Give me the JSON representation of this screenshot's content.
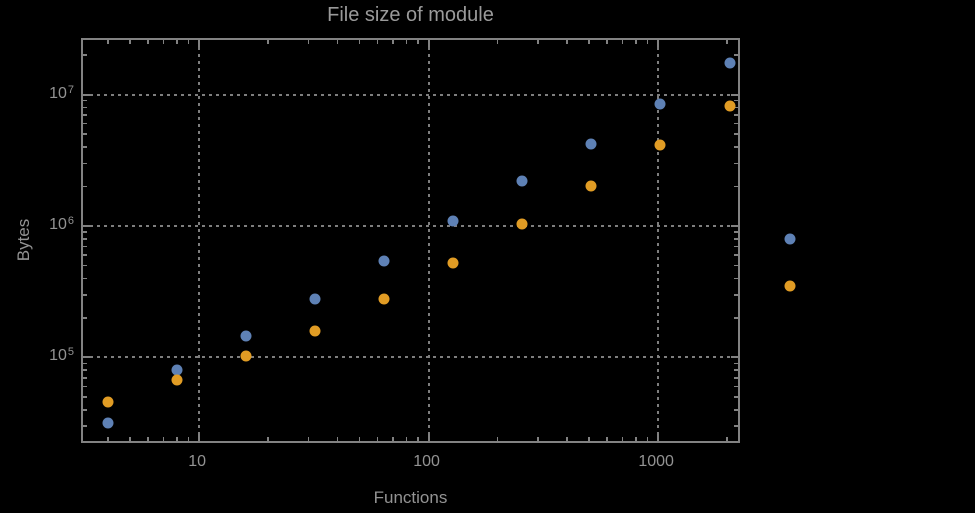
{
  "figure": {
    "background": "#000000",
    "frame_color": "#828282",
    "grid_color": "#7e7e7e",
    "text_color": "#939393"
  },
  "chart_data": {
    "type": "scatter",
    "title": "File size of module",
    "xlabel": "Functions",
    "ylabel": "Bytes",
    "x_scale": "log",
    "y_scale": "log",
    "xlim": [
      3.12,
      2320
    ],
    "ylim": [
      21600,
      26000000
    ],
    "grid": "dotted lines at decade powers, both axes",
    "legend_position": "none",
    "x_ticks": [
      {
        "label": "10",
        "value": 10
      },
      {
        "label": "100",
        "value": 100
      },
      {
        "label": "1000",
        "value": 1000
      }
    ],
    "y_ticks": [
      {
        "base": "10",
        "exp": "5",
        "value": 100000
      },
      {
        "base": "10",
        "exp": "6",
        "value": 1000000
      },
      {
        "base": "10",
        "exp": "7",
        "value": 10000000
      }
    ],
    "note": "last point of each series lies beyond the right frame edge (not clipped)",
    "series": [
      {
        "name": "series-1-blue",
        "color": "#5e81b5",
        "points": [
          [
            4,
            32000
          ],
          [
            8,
            81000
          ],
          [
            16,
            145000
          ],
          [
            32,
            280000
          ],
          [
            64,
            540000
          ],
          [
            128,
            1100000
          ],
          [
            256,
            2200000
          ],
          [
            512,
            4200000
          ],
          [
            1024,
            8500000
          ],
          [
            2048,
            17500000
          ],
          [
            3750,
            790000
          ]
        ]
      },
      {
        "name": "series-2-orange",
        "color": "#e19c24",
        "points": [
          [
            4,
            46000
          ],
          [
            8,
            67000
          ],
          [
            16,
            102000
          ],
          [
            32,
            160000
          ],
          [
            64,
            280000
          ],
          [
            128,
            520000
          ],
          [
            256,
            1030000
          ],
          [
            512,
            2000000
          ],
          [
            1024,
            4100000
          ],
          [
            2048,
            8200000
          ],
          [
            3750,
            350000
          ]
        ]
      }
    ]
  }
}
